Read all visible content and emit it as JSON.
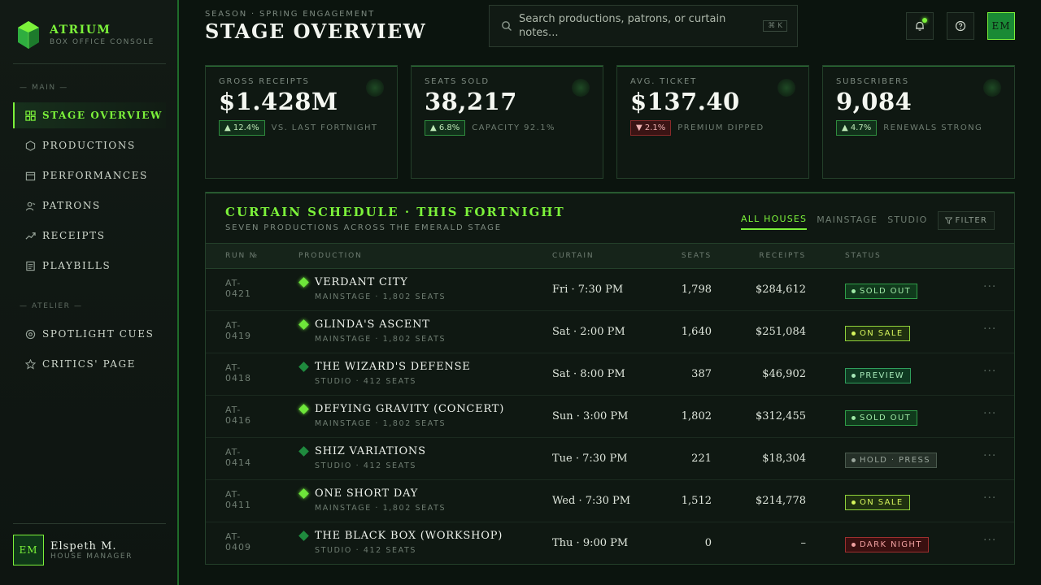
{
  "brand": {
    "name": "Atrium",
    "subtitle": "Box Office Console"
  },
  "sidebar": {
    "sections": [
      "— Main —",
      "— Atelier —"
    ],
    "items": [
      {
        "label": "Stage Overview",
        "icon": "grid-icon",
        "active": true
      },
      {
        "label": "Productions",
        "icon": "hexagon-icon"
      },
      {
        "label": "Performances",
        "icon": "calendar-icon"
      },
      {
        "label": "Patrons",
        "icon": "users-icon"
      },
      {
        "label": "Receipts",
        "icon": "trend-icon"
      },
      {
        "label": "Playbills",
        "icon": "document-icon"
      },
      {
        "label": "Spotlight Cues",
        "icon": "spotlight-icon"
      },
      {
        "label": "Critics' Page",
        "icon": "star-icon"
      }
    ],
    "user": {
      "initials": "EM",
      "name": "Elspeth M.",
      "role": "House Manager"
    }
  },
  "header": {
    "season": "Season · Spring Engagement",
    "title": "Stage Overview",
    "search_placeholder": "Search productions, patrons, or curtain notes...",
    "search_shortcut": "⌘ K",
    "avatar_initials": "EM"
  },
  "kpis": [
    {
      "label": "Gross Receipts",
      "value": "$1.428M",
      "delta": "▲ 12.4%",
      "direction": "up",
      "note": "vs. last fortnight"
    },
    {
      "label": "Seats Sold",
      "value": "38,217",
      "delta": "▲ 6.8%",
      "direction": "up",
      "note": "Capacity 92.1%"
    },
    {
      "label": "Avg. Ticket",
      "value": "$137.40",
      "delta": "▼ 2.1%",
      "direction": "down",
      "note": "Premium dipped"
    },
    {
      "label": "Subscribers",
      "value": "9,084",
      "delta": "▲ 4.7%",
      "direction": "up",
      "note": "Renewals strong"
    }
  ],
  "schedule": {
    "title": "Curtain Schedule · This Fortnight",
    "subtitle": "Seven productions across the Emerald Stage",
    "tabs": [
      "All Houses",
      "Mainstage",
      "Studio"
    ],
    "filter_label": "Filter",
    "columns": [
      "Run №",
      "Production",
      "Curtain",
      "Seats",
      "Receipts",
      "Status"
    ],
    "rows": [
      {
        "run": "AT-0421",
        "name": "Verdant City",
        "venue": "Mainstage · 1,802 seats",
        "house": "main",
        "curtain": "Fri · 7:30 PM",
        "seats": "1,798",
        "receipts": "$284,612",
        "status": "Sold Out",
        "status_kind": "sold"
      },
      {
        "run": "AT-0419",
        "name": "Glinda's Ascent",
        "venue": "Mainstage · 1,802 seats",
        "house": "main",
        "curtain": "Sat · 2:00 PM",
        "seats": "1,640",
        "receipts": "$251,084",
        "status": "On Sale",
        "status_kind": "onsale"
      },
      {
        "run": "AT-0418",
        "name": "The Wizard's Defense",
        "venue": "Studio · 412 seats",
        "house": "studio",
        "curtain": "Sat · 8:00 PM",
        "seats": "387",
        "receipts": "$46,902",
        "status": "Preview",
        "status_kind": "preview"
      },
      {
        "run": "AT-0416",
        "name": "Defying Gravity (Concert)",
        "venue": "Mainstage · 1,802 seats",
        "house": "main",
        "curtain": "Sun · 3:00 PM",
        "seats": "1,802",
        "receipts": "$312,455",
        "status": "Sold Out",
        "status_kind": "sold"
      },
      {
        "run": "AT-0414",
        "name": "Shiz Variations",
        "venue": "Studio · 412 seats",
        "house": "studio",
        "curtain": "Tue · 7:30 PM",
        "seats": "221",
        "receipts": "$18,304",
        "status": "Hold · Press",
        "status_kind": "hold"
      },
      {
        "run": "AT-0411",
        "name": "One Short Day",
        "venue": "Mainstage · 1,802 seats",
        "house": "main",
        "curtain": "Wed · 7:30 PM",
        "seats": "1,512",
        "receipts": "$214,778",
        "status": "On Sale",
        "status_kind": "onsale"
      },
      {
        "run": "AT-0409",
        "name": "The Black Box (Workshop)",
        "venue": "Studio · 412 seats",
        "house": "studio",
        "curtain": "Thu · 9:00 PM",
        "seats": "0",
        "receipts": "–",
        "status": "Dark Night",
        "status_kind": "dark"
      }
    ],
    "row_action": "···"
  },
  "status_colors": {
    "sold": {
      "fg": "#9fe8a6",
      "bg": "#103a1c",
      "border": "#2f9e48"
    },
    "onsale": {
      "fg": "#d6f55c",
      "bg": "#1f3010",
      "border": "#8fd13a"
    },
    "preview": {
      "fg": "#a6e8b8",
      "bg": "#0f3a22",
      "border": "#2f9e5c"
    },
    "hold": {
      "fg": "#9aa69c",
      "bg": "#253028",
      "border": "#4a5a4e"
    },
    "dark": {
      "fg": "#f0a0a0",
      "bg": "#3a1010",
      "border": "#9e2f2f"
    }
  }
}
